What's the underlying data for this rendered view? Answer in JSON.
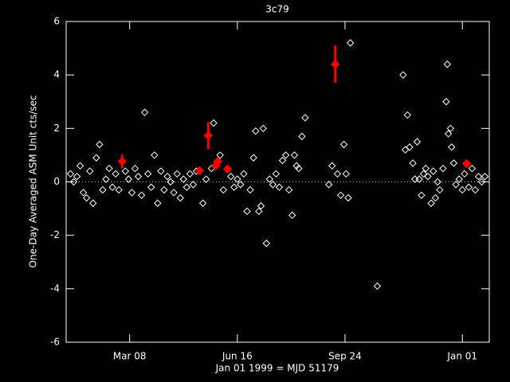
{
  "chart_data": {
    "type": "scatter",
    "title": "3c79",
    "xlabel": "Jan 01 1999 = MJD 51179",
    "ylabel": "One-Day Averaged ASM Unit cts/sec",
    "xlim": [
      51186,
      51579
    ],
    "xticks": [
      {
        "value": 51245,
        "label": "Mar 08"
      },
      {
        "value": 51345,
        "label": "Jun 16"
      },
      {
        "value": 51445,
        "label": "Sep 24"
      },
      {
        "value": 51554,
        "label": "Jan 01"
      }
    ],
    "ylim": [
      -6,
      6
    ],
    "yticks": [
      -6,
      -4,
      -2,
      0,
      2,
      4,
      6
    ],
    "series": [
      {
        "color": "#ffffff",
        "marker": "diamond",
        "x": [
          51190,
          51193,
          51196,
          51199,
          51202,
          51205,
          51208,
          51211,
          51214,
          51217,
          51220,
          51223,
          51226,
          51229,
          51232,
          51235,
          51241,
          51244,
          51247,
          51250,
          51253,
          51256,
          51259,
          51262,
          51265,
          51268,
          51271,
          51274,
          51277,
          51280,
          51283,
          51286,
          51289,
          51292,
          51295,
          51298,
          51301,
          51304,
          51307,
          51313,
          51316,
          51321,
          51323,
          51329,
          51332,
          51339,
          51342,
          51345,
          51348,
          51351,
          51354,
          51357,
          51360,
          51362,
          51365,
          51367,
          51369,
          51372,
          51375,
          51378,
          51381,
          51384,
          51387,
          51390,
          51393,
          51396,
          51398,
          51400,
          51402,
          51405,
          51408,
          51430,
          51433,
          51438,
          51441,
          51444,
          51446,
          51448,
          51450,
          51475,
          51499,
          51501,
          51503,
          51505,
          51508,
          51510,
          51512,
          51514,
          51516,
          51518,
          51520,
          51522,
          51525,
          51527,
          51529,
          51531,
          51533,
          51536,
          51539,
          51540,
          51541,
          51543,
          51544,
          51546,
          51548,
          51551,
          51554,
          51556,
          51560,
          51563,
          51566,
          51569,
          51572,
          51575
        ],
        "values": [
          0.3,
          0.0,
          0.2,
          0.6,
          -0.4,
          -0.6,
          0.4,
          -0.8,
          0.9,
          1.4,
          -0.3,
          0.1,
          0.5,
          -0.2,
          0.3,
          -0.3,
          0.4,
          0.1,
          -0.4,
          0.5,
          0.2,
          -0.5,
          2.6,
          0.3,
          -0.2,
          1.0,
          -0.8,
          0.4,
          -0.3,
          0.2,
          0.0,
          -0.4,
          0.3,
          -0.6,
          0.1,
          -0.2,
          0.3,
          -0.1,
          0.4,
          -0.8,
          0.1,
          0.5,
          2.2,
          1.0,
          -0.3,
          0.2,
          -0.2,
          0.1,
          -0.1,
          0.3,
          -1.1,
          -0.3,
          0.9,
          1.9,
          -1.1,
          -0.9,
          2.0,
          -2.3,
          0.1,
          -0.1,
          0.3,
          -0.2,
          0.8,
          1.0,
          -0.3,
          -1.25,
          1.0,
          0.6,
          0.5,
          1.7,
          2.4,
          -0.1,
          0.6,
          0.3,
          -0.5,
          1.4,
          0.3,
          -0.6,
          5.2,
          -3.9,
          4.0,
          1.2,
          2.5,
          1.3,
          0.7,
          0.1,
          1.5,
          0.1,
          -0.5,
          0.3,
          0.5,
          0.2,
          -0.8,
          0.4,
          -0.6,
          0.0,
          -0.3,
          0.5,
          3.0,
          4.4,
          1.8,
          2.0,
          1.3,
          0.7,
          -0.1,
          0.1,
          -0.3,
          0.3,
          -0.2,
          0.5,
          -0.3,
          0.2,
          0.0,
          0.2
        ]
      },
      {
        "color": "#ff0000",
        "marker": "filled-diamond",
        "x": [
          51238,
          51310,
          51318,
          51325,
          51327,
          51336,
          51436,
          51558
        ],
        "values": [
          0.77,
          0.42,
          1.73,
          0.6,
          0.77,
          0.48,
          4.4,
          0.68
        ],
        "errors": [
          0.25,
          0.05,
          0.5,
          0.1,
          0.1,
          0.05,
          0.7,
          0.15
        ]
      }
    ]
  }
}
